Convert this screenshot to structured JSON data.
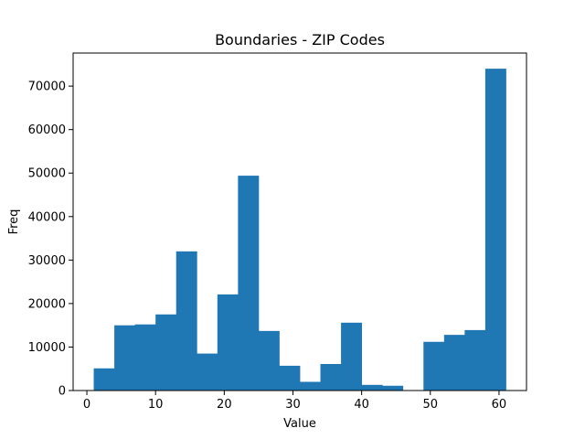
{
  "chart_data": {
    "type": "bar",
    "title": "Boundaries - ZIP Codes",
    "xlabel": "Value",
    "ylabel": "Freq",
    "xlim": [
      -2,
      64
    ],
    "ylim": [
      0,
      77600
    ],
    "xticks": [
      0,
      10,
      20,
      30,
      40,
      50,
      60
    ],
    "yticks": [
      0,
      10000,
      20000,
      30000,
      40000,
      50000,
      60000,
      70000
    ],
    "bin_edges": [
      1,
      4,
      7,
      10,
      13,
      16,
      19,
      22,
      25,
      28,
      31,
      34,
      37,
      40,
      43,
      46,
      49,
      52,
      55,
      58,
      61
    ],
    "values": [
      5100,
      15000,
      15200,
      17500,
      32000,
      8500,
      22100,
      49400,
      13700,
      5700,
      2000,
      6100,
      15600,
      1300,
      1100,
      0,
      11200,
      12800,
      13900,
      74000
    ],
    "bar_color": "#1f77b4",
    "grid": false,
    "legend": "none"
  }
}
